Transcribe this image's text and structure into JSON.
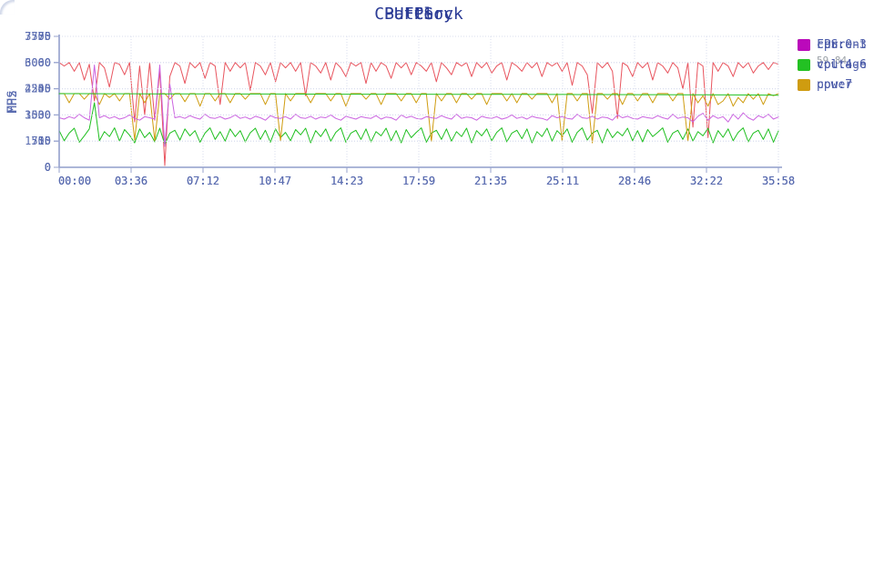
{
  "style": {
    "background": "#ffffff",
    "title_color": "#2c3c96",
    "tick_text_color": "#5a6cb0",
    "axis_color": "#97a3ce",
    "grid_color": "#d9ddee",
    "legend_text_color": "#4a5aa8",
    "legend_value_color": "#9aa0a6"
  },
  "chart_data": [
    {
      "type": "line",
      "title": "FPS",
      "ylabel": "FPS",
      "xlabel": "",
      "ylim": [
        0,
        75
      ],
      "yticks": [
        0,
        15,
        30,
        45,
        60,
        75
      ],
      "xticks": [
        "00:00",
        "03:36",
        "07:12",
        "10:47",
        "14:23",
        "17:59",
        "21:35",
        "25:11",
        "28:46",
        "32:22",
        "35:58"
      ],
      "grid": true,
      "legend_position": "right",
      "series": [
        {
          "name": "FPS",
          "color": "#e8545e",
          "value_label": "59.84",
          "values": [
            60,
            58,
            60,
            55,
            60,
            50,
            59,
            38,
            60,
            57,
            46,
            60,
            59,
            53,
            60,
            26,
            58,
            30,
            60,
            27,
            55,
            1,
            52,
            60,
            58,
            48,
            60,
            57,
            60,
            51,
            60,
            58,
            36,
            60,
            55,
            60,
            57,
            60,
            44,
            60,
            58,
            53,
            60,
            49,
            60,
            57,
            60,
            55,
            60,
            41,
            60,
            58,
            54,
            60,
            50,
            60,
            57,
            52,
            60,
            58,
            60,
            48,
            60,
            55,
            60,
            58,
            51,
            60,
            57,
            60,
            53,
            60,
            58,
            55,
            60,
            49,
            60,
            57,
            53,
            60,
            58,
            60,
            52,
            60,
            57,
            60,
            54,
            58,
            60,
            50,
            60,
            58,
            55,
            60,
            57,
            60,
            52,
            60,
            58,
            60,
            55,
            60,
            47,
            60,
            58,
            53,
            31,
            60,
            57,
            60,
            55,
            28,
            60,
            58,
            52,
            60,
            57,
            60,
            50,
            60,
            58,
            54,
            60,
            57,
            45,
            60,
            23,
            60,
            58,
            17,
            60,
            55,
            60,
            58,
            52,
            60,
            57,
            60,
            54,
            58,
            60,
            56,
            60,
            59
          ]
        }
      ]
    },
    {
      "type": "line",
      "title": "CPU Clock",
      "ylabel": "MHz",
      "xlabel": "",
      "ylim": [
        0,
        3750
      ],
      "yticks": [
        0,
        750,
        1500,
        2250,
        3000,
        3750
      ],
      "xticks": [
        "00:00",
        "03:36",
        "07:12",
        "10:47",
        "14:23",
        "17:59",
        "21:35",
        "25:11",
        "28:46",
        "32:22",
        "35:58"
      ],
      "grid": true,
      "legend_position": "right",
      "series": [
        {
          "name": "cpu:0-3",
          "color": "#1fbf1f",
          "values": [
            1050,
            760,
            980,
            1120,
            720,
            900,
            1100,
            1850,
            760,
            1020,
            880,
            1130,
            750,
            1080,
            920,
            700,
            1100,
            850,
            1000,
            730,
            1120,
            650,
            980,
            1060,
            780,
            1100,
            900,
            1050,
            720,
            980,
            1130,
            800,
            1020,
            750,
            1100,
            880,
            1050,
            730,
            990,
            1120,
            800,
            1060,
            720,
            1100,
            850,
            1000,
            760,
            1080,
            930,
            1120,
            700,
            1050,
            880,
            1100,
            750,
            1000,
            1130,
            720,
            980,
            1060,
            800,
            1100,
            730,
            1020,
            900,
            1120,
            760,
            1050,
            700,
            1080,
            850,
            1000,
            1130,
            720,
            980,
            1060,
            800,
            1100,
            750,
            1020,
            880,
            1120,
            700,
            1050,
            900,
            1100,
            760,
            1000,
            1130,
            730,
            980,
            1060,
            820,
            1100,
            700,
            1020,
            880,
            1120,
            750,
            1050,
            900,
            1100,
            720,
            1000,
            1130,
            780,
            980,
            1060,
            700,
            1100,
            850,
            1020,
            900,
            1120,
            760,
            1050,
            730,
            1080,
            880,
            1000,
            1130,
            720,
            980,
            1060,
            800,
            1100,
            750,
            1020,
            900,
            1120,
            700,
            1050,
            860,
            1100,
            760,
            1000,
            1130,
            730,
            980,
            1060,
            800,
            1100,
            720,
            1040
          ]
        },
        {
          "name": "cpu:4-6",
          "color": "#cf9c10",
          "values": [
            2112,
            2112,
            1850,
            2112,
            2112,
            1950,
            2112,
            2112,
            1800,
            2112,
            2000,
            2112,
            1900,
            2112,
            2112,
            780,
            2112,
            1850,
            2112,
            760,
            2112,
            2112,
            1950,
            2112,
            2112,
            1880,
            2112,
            2112,
            1750,
            2112,
            2112,
            1900,
            2112,
            2112,
            1850,
            2112,
            2112,
            1950,
            2112,
            2112,
            2112,
            1800,
            2112,
            2112,
            760,
            2112,
            1900,
            2112,
            2112,
            2112,
            1850,
            2112,
            2112,
            2112,
            1900,
            2112,
            2112,
            1750,
            2112,
            2112,
            2112,
            1950,
            2112,
            2112,
            1800,
            2112,
            2112,
            2112,
            1900,
            2112,
            2112,
            1850,
            2112,
            2112,
            740,
            2112,
            1900,
            2112,
            2112,
            1850,
            2112,
            2112,
            1950,
            2112,
            2112,
            1800,
            2112,
            2112,
            2112,
            1900,
            2112,
            1850,
            2112,
            2112,
            1950,
            2112,
            2112,
            2112,
            1850,
            2112,
            750,
            2112,
            2112,
            1900,
            2112,
            2112,
            700,
            2112,
            2112,
            1950,
            2112,
            2112,
            1800,
            2112,
            2112,
            1900,
            2112,
            2112,
            1850,
            2112,
            2112,
            2112,
            1900,
            2112,
            2112,
            750,
            2112,
            1850,
            2050,
            1750,
            2112,
            1800,
            1900,
            2112,
            1750,
            2000,
            1850,
            2112,
            1950,
            2112,
            1800,
            2112,
            2050,
            2112
          ]
        },
        {
          "name": "cpu:7",
          "color": "#cb63e0",
          "values": [
            1420,
            1380,
            1450,
            1400,
            1520,
            1420,
            1350,
            2930,
            1420,
            1480,
            1400,
            1450,
            1380,
            1420,
            1500,
            1400,
            1350,
            1450,
            1420,
            1380,
            2930,
            600,
            2380,
            1420,
            1450,
            1400,
            1480,
            1420,
            1380,
            1520,
            1420,
            1400,
            1450,
            1380,
            1420,
            1500,
            1400,
            1440,
            1380,
            1460,
            1420,
            1350,
            1480,
            1420,
            1400,
            1450,
            1380,
            1520,
            1420,
            1400,
            1460,
            1380,
            1440,
            1420,
            1500,
            1400,
            1350,
            1460,
            1420,
            1380,
            1450,
            1420,
            1400,
            1480,
            1380,
            1440,
            1420,
            1350,
            1500,
            1420,
            1460,
            1400,
            1380,
            1450,
            1420,
            1400,
            1480,
            1420,
            1380,
            1520,
            1400,
            1440,
            1420,
            1350,
            1460,
            1420,
            1400,
            1450,
            1380,
            1420,
            1500,
            1400,
            1440,
            1380,
            1460,
            1420,
            1400,
            1350,
            1480,
            1420,
            1450,
            1400,
            1380,
            1520,
            1420,
            1400,
            1460,
            1380,
            1440,
            1420,
            1350,
            1500,
            1420,
            1460,
            1400,
            1380,
            1450,
            1420,
            1400,
            1480,
            1420,
            1380,
            1520,
            1400,
            1440,
            1420,
            1300,
            1460,
            1550,
            1350,
            1480,
            1400,
            1450,
            1300,
            1520,
            1380,
            1560,
            1420,
            1350,
            1480,
            1420,
            1520,
            1380,
            1440
          ]
        }
      ]
    },
    {
      "type": "line",
      "title": "Battery",
      "ylabel": "",
      "xlabel": "",
      "ylim": [
        0,
        7500
      ],
      "yticks": [
        0,
        1500,
        3000,
        4500,
        6000,
        7500
      ],
      "xticks": [
        "00:00",
        "03:36",
        "07:12",
        "10:47",
        "14:23",
        "17:59",
        "21:35",
        "25:11",
        "28:46",
        "32:22",
        "35:58"
      ],
      "grid": true,
      "legend_position": "right",
      "series": [
        {
          "name": "current",
          "color": "#bb09bb",
          "values": []
        },
        {
          "name": "voltage",
          "color": "#23c123",
          "values": [
            4220,
            4220,
            4215,
            4215,
            4210,
            4210,
            4205,
            4205,
            4200,
            4200,
            4195,
            4195,
            4190,
            4190,
            4185,
            4185,
            4180,
            4180,
            4175,
            4175,
            4170,
            4170,
            4165,
            4165,
            4160,
            4160,
            4155,
            4150,
            4145,
            4140,
            4130
          ]
        },
        {
          "name": "power",
          "color": "#cf9c10",
          "values": []
        }
      ]
    }
  ]
}
